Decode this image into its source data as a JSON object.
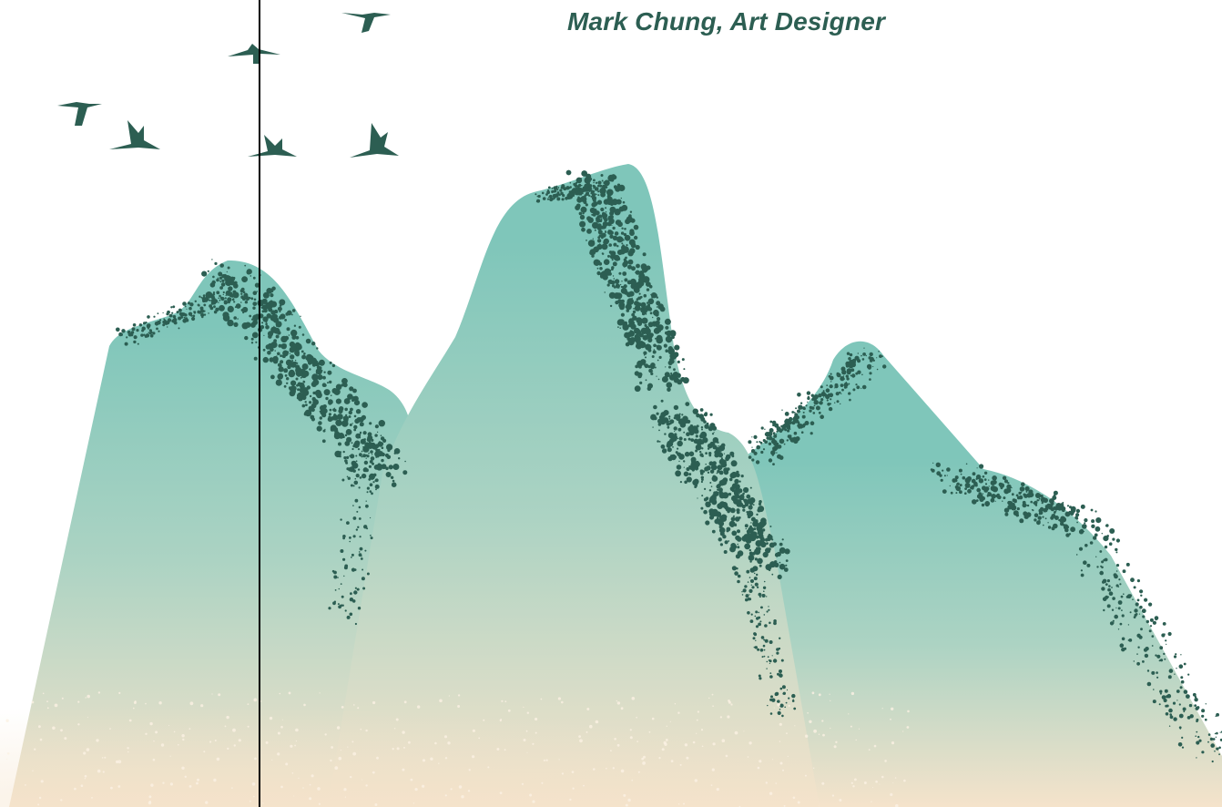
{
  "credit": {
    "text": "Mark Chung, Art Designer"
  },
  "colors": {
    "ink": "#2c5e52",
    "mountain_top": "#7fc6ba",
    "mountain_mid": "#acd3c3",
    "mountain_base": "#f5e3cb",
    "guide_line": "#000000"
  },
  "icons": [
    "crane-icon"
  ]
}
